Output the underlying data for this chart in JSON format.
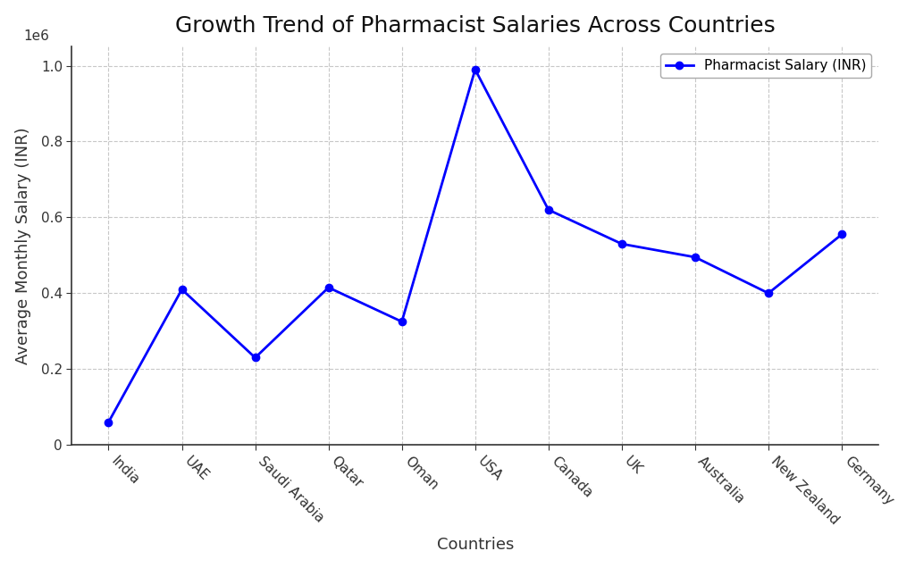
{
  "countries": [
    "India",
    "UAE",
    "Saudi Arabia",
    "Qatar",
    "Oman",
    "USA",
    "Canada",
    "UK",
    "Australia",
    "New Zealand",
    "Germany"
  ],
  "salaries": [
    60000,
    410000,
    230000,
    415000,
    325000,
    990000,
    620000,
    530000,
    495000,
    400000,
    555000
  ],
  "line_color": "#0000FF",
  "marker_color": "#0000FF",
  "title": "Growth Trend of Pharmacist Salaries Across Countries",
  "xlabel": "Countries",
  "ylabel": "Average Monthly Salary (INR)",
  "legend_label": "Pharmacist Salary (INR)",
  "bg_color": "#FFFFFF",
  "grid_color": "#C8C8C8",
  "title_fontsize": 18,
  "label_fontsize": 13,
  "tick_fontsize": 11,
  "ylim_min": 0,
  "ylim_max": 1050000
}
